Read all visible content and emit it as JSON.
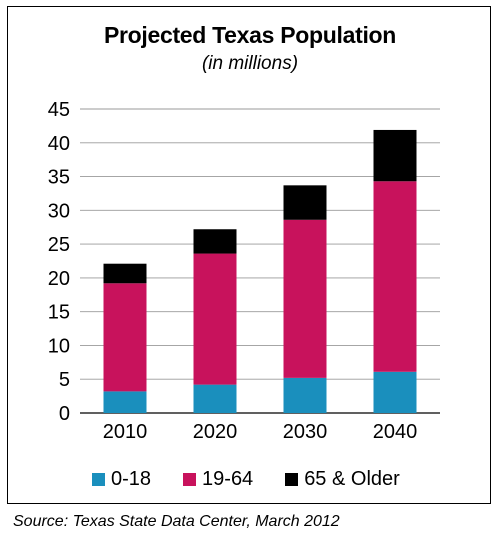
{
  "chart_data": {
    "type": "bar",
    "stacked": true,
    "title": "Projected Texas Population",
    "subtitle": "(in millions)",
    "categories": [
      "2010",
      "2020",
      "2030",
      "2040"
    ],
    "series": [
      {
        "name": "0-18",
        "color": "#1a8fbd",
        "values": [
          3.2,
          4.2,
          5.2,
          6.1
        ]
      },
      {
        "name": "19-64",
        "color": "#c8125c",
        "values": [
          16.0,
          19.4,
          23.4,
          28.2
        ]
      },
      {
        "name": "65 & Older",
        "color": "#000000",
        "values": [
          2.9,
          3.6,
          5.1,
          7.6
        ]
      }
    ],
    "ylim": [
      0,
      45
    ],
    "yticks": [
      "0",
      "5",
      "10",
      "15",
      "20",
      "25",
      "30",
      "35",
      "40",
      "45"
    ],
    "grid": true,
    "legend_position": "bottom"
  },
  "source": "Source: Texas State Data Center, March 2012"
}
